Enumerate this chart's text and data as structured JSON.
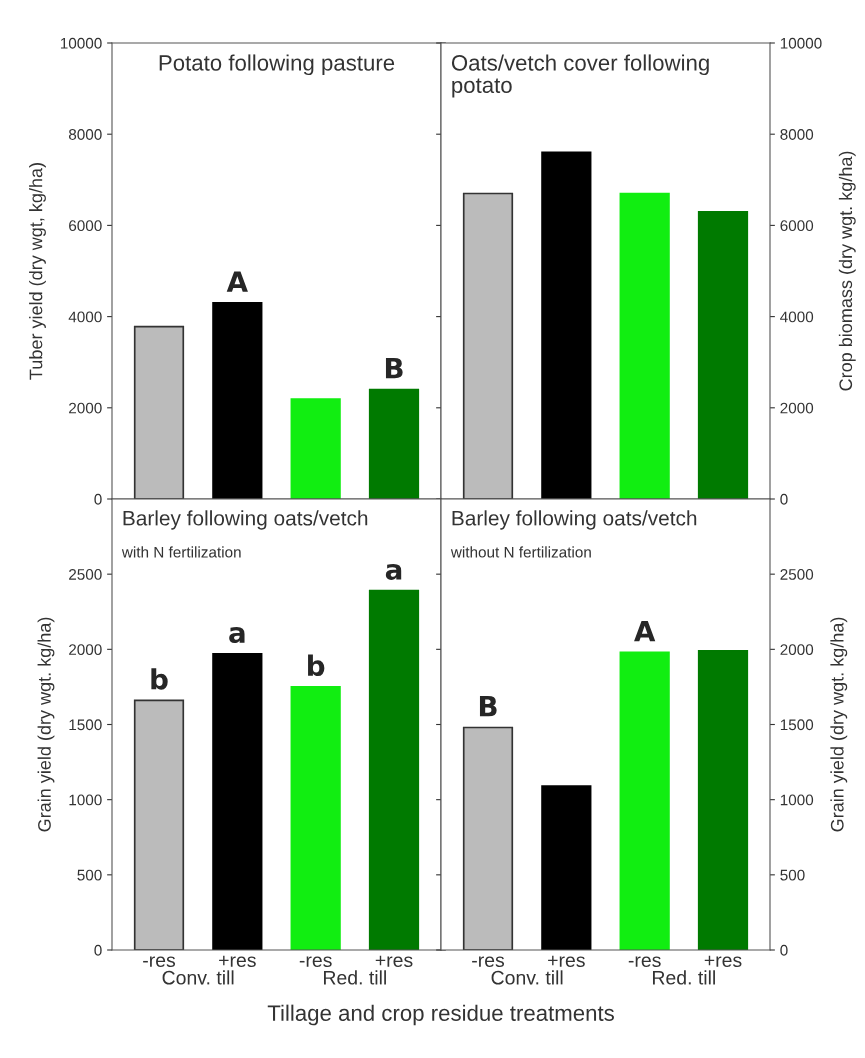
{
  "chart_data": [
    {
      "type": "bar",
      "title": "Potato following pasture",
      "ylabel": "Tuber yield (dry wgt, kg/ha)",
      "categories": [
        null,
        null,
        null,
        null
      ],
      "values": [
        3780,
        4300,
        2190,
        2400
      ],
      "colors": [
        "#bbbbbb",
        "#000000",
        "#11ee11",
        "#007a00"
      ],
      "value_labels": [
        null,
        "A",
        null,
        "B"
      ],
      "ylim": [
        0,
        10000
      ],
      "yticks": [
        0,
        2000,
        4000,
        6000,
        8000,
        10000
      ],
      "tick_labels": "y",
      "grid": false,
      "legend": false
    },
    {
      "type": "bar",
      "title": "Oats/vetch cover following\npotato",
      "ylabel": "Crop biomass (dry wgt. kg/ha)",
      "categories": [
        null,
        null,
        null,
        null
      ],
      "values": [
        6700,
        7600,
        6700,
        6300
      ],
      "colors": [
        "#bbbbbb",
        "#000000",
        "#11ee11",
        "#007a00"
      ],
      "ylim": [
        0,
        10000
      ],
      "yticks": [
        0,
        2000,
        4000,
        6000,
        8000,
        10000
      ],
      "tick_labels": "y",
      "grid": false,
      "legend": false
    },
    {
      "type": "bar",
      "title": "Barley following oats/vetch",
      "subtitle": "with N fertilization",
      "ylabel": "Grain yield (dry wgt. kg/ha)",
      "xlabel": "Tillage and crop residue treatments",
      "categories": [
        "-res",
        "+res",
        "-res",
        "+res"
      ],
      "values": [
        1660,
        1970,
        1750,
        2390
      ],
      "colors": [
        "#bbbbbb",
        "#000000",
        "#11ee11",
        "#007a00"
      ],
      "value_labels": [
        "b",
        "a",
        "b",
        "a"
      ],
      "annotations": [
        "Conv. till",
        "Red. till"
      ],
      "ylim": [
        0,
        3000
      ],
      "yticks": [
        0,
        500,
        1000,
        1500,
        2000,
        2500
      ],
      "grid": false,
      "legend": false
    },
    {
      "type": "bar",
      "title": "Barley following oats/vetch",
      "subtitle": "without N fertilization",
      "ylabel": "Grain yield (dry wgt. kg/ha)",
      "categories": [
        "-res",
        "+res",
        "-res",
        "+res"
      ],
      "values": [
        1480,
        1090,
        1980,
        1990
      ],
      "colors": [
        "#bbbbbb",
        "#000000",
        "#11ee11",
        "#007a00"
      ],
      "value_labels": [
        "B",
        null,
        "A",
        null
      ],
      "annotations": [
        "Conv. till",
        "Red. till"
      ],
      "ylim": [
        0,
        3000
      ],
      "yticks": [
        0,
        500,
        1000,
        1500,
        2000,
        2500
      ],
      "grid": false,
      "legend": false
    }
  ]
}
